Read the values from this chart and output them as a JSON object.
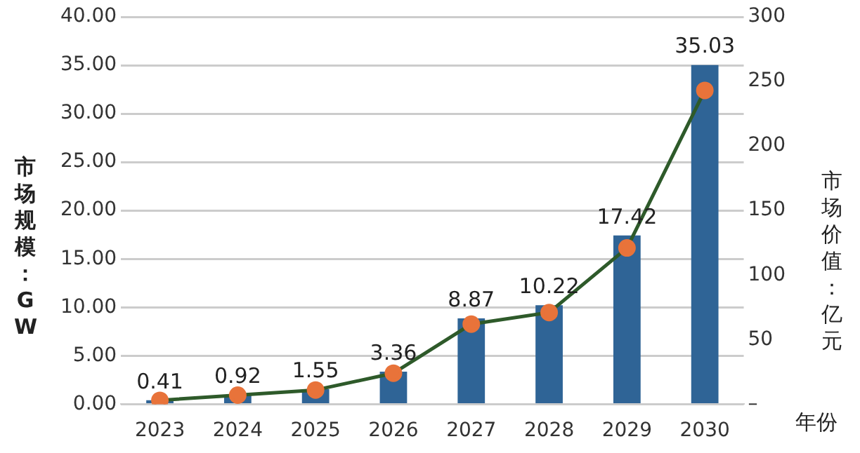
{
  "chart_data": {
    "type": "bar",
    "xlabel": "年份",
    "ylabel": "市场规模：GW",
    "y2label": "市场价值：亿元",
    "categories": [
      "2023",
      "2024",
      "2025",
      "2026",
      "2027",
      "2028",
      "2029",
      "2030"
    ],
    "series": [
      {
        "color": "#2f6496",
        "values": [
          0.41,
          0.92,
          1.55,
          3.36,
          8.87,
          10.22,
          17.42,
          35.03
        ],
        "value_labels": [
          "0.41",
          "0.92",
          "1.55",
          "3.36",
          "8.87",
          "10.22",
          "17.42",
          "35.03"
        ]
      },
      {
        "type": "line",
        "axis": "y2",
        "color": "#2e5a2a",
        "marker": "circle",
        "line_style": "solid",
        "values": [
          3,
          7,
          11,
          24,
          62,
          71,
          121,
          243
        ]
      }
    ],
    "ylim": [
      0,
      40
    ],
    "yticks": [
      {
        "value": 0,
        "label": "0.00"
      },
      {
        "value": 5,
        "label": "5.00"
      },
      {
        "value": 10,
        "label": "10.00"
      },
      {
        "value": 15,
        "label": "15.00"
      },
      {
        "value": 20,
        "label": "20.00"
      },
      {
        "value": 25,
        "label": "25.00"
      },
      {
        "value": 30,
        "label": "30.00"
      },
      {
        "value": 35,
        "label": "35.00"
      },
      {
        "value": 40,
        "label": "40.00"
      }
    ],
    "y2lim": [
      0,
      300
    ],
    "y2ticks": [
      {
        "value": 0,
        "label": "–"
      },
      50,
      100,
      150,
      200,
      250,
      300
    ],
    "grid": "y",
    "legend": false
  }
}
